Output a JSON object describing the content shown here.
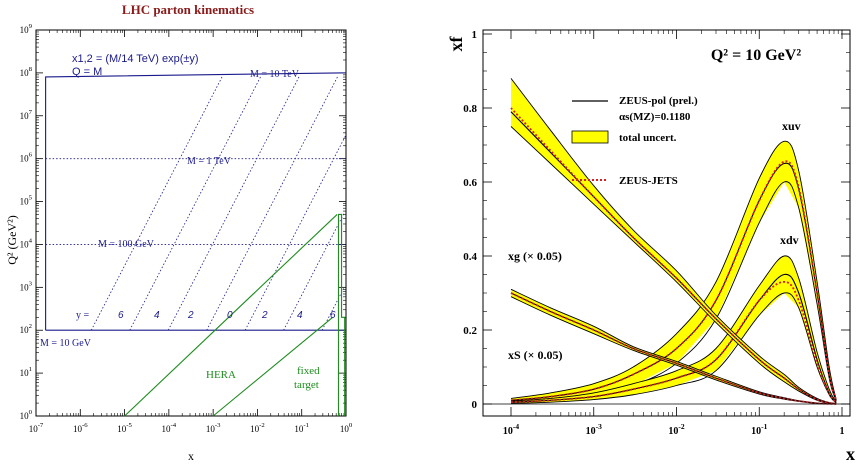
{
  "chart_data": [
    {
      "type": "line",
      "title": "LHC parton kinematics",
      "xlabel": "x",
      "ylabel": "Q² (GeV²)",
      "xscale": "log",
      "yscale": "log",
      "xlim": [
        1e-07,
        1
      ],
      "ylim": [
        1,
        1000000000.0
      ],
      "x_tick_labels": [
        "10-7",
        "10-6",
        "10-5",
        "10-4",
        "10-3",
        "10-2",
        "10-1",
        "100"
      ],
      "y_tick_labels": [
        "100",
        "101",
        "102",
        "103",
        "104",
        "105",
        "106",
        "107",
        "108",
        "109"
      ],
      "formula_lines": [
        "x1,2 = (M/14 TeV) exp(±y)",
        "Q = M"
      ],
      "mass_labels": [
        "M = 10 TeV",
        "M = 1 TeV",
        "M = 100 GeV",
        "M = 10 GeV"
      ],
      "masses_gev": [
        10000,
        1000,
        100,
        10
      ],
      "y_row_label": "y =",
      "y_values_labels": [
        "6",
        "4",
        "2",
        "0",
        "2",
        "4",
        "6"
      ],
      "rapidity_values": [
        -6,
        -4,
        -2,
        0,
        2,
        4,
        6
      ],
      "regions": [
        "HERA",
        "fixed",
        "target"
      ],
      "colors": {
        "lhc": "#1a1a8c",
        "hera": "#1e8c1e",
        "title": "#8b1a1a"
      }
    },
    {
      "type": "line",
      "title": "Q² = 10 GeV²",
      "xlabel": "x",
      "ylabel": "xf",
      "xscale": "log",
      "xlim": [
        0.0001,
        1
      ],
      "ylim": [
        0,
        1
      ],
      "x_tick_labels": [
        "10-4",
        "10-3",
        "10-2",
        "10-1",
        "1"
      ],
      "y_tick_labels": [
        "0",
        "0.2",
        "0.4",
        "0.6",
        "0.8",
        "1"
      ],
      "legend": {
        "placement": "top-right",
        "entries": [
          "ZEUS-pol (prel.)",
          "αs(MZ)=0.1180",
          "total uncert.",
          "ZEUS-JETS"
        ]
      },
      "curve_labels": [
        "xuv",
        "xdv",
        "xg (× 0.05)",
        "xS (× 0.05)"
      ],
      "x": [
        0.0001,
        0.0003,
        0.001,
        0.003,
        0.01,
        0.03,
        0.1,
        0.2,
        0.3,
        0.5,
        0.7,
        0.85
      ],
      "series": [
        {
          "name": "xuv",
          "central": [
            0.01,
            0.02,
            0.04,
            0.08,
            0.15,
            0.28,
            0.55,
            0.65,
            0.58,
            0.3,
            0.08,
            0.01
          ],
          "lower": [
            0.005,
            0.012,
            0.025,
            0.05,
            0.11,
            0.23,
            0.49,
            0.6,
            0.53,
            0.27,
            0.07,
            0.008
          ],
          "upper": [
            0.015,
            0.03,
            0.055,
            0.1,
            0.19,
            0.33,
            0.61,
            0.71,
            0.63,
            0.33,
            0.1,
            0.012
          ],
          "jets": [
            0.01,
            0.02,
            0.04,
            0.08,
            0.15,
            0.28,
            0.55,
            0.655,
            0.585,
            0.3,
            0.08,
            0.01
          ]
        },
        {
          "name": "xdv",
          "central": [
            0.005,
            0.01,
            0.02,
            0.04,
            0.07,
            0.12,
            0.28,
            0.35,
            0.3,
            0.12,
            0.03,
            0.004
          ],
          "lower": [
            0.002,
            0.005,
            0.012,
            0.025,
            0.05,
            0.09,
            0.24,
            0.3,
            0.26,
            0.1,
            0.025,
            0.003
          ],
          "upper": [
            0.008,
            0.015,
            0.03,
            0.055,
            0.09,
            0.15,
            0.32,
            0.4,
            0.34,
            0.14,
            0.04,
            0.005
          ],
          "jets": [
            0.005,
            0.01,
            0.02,
            0.04,
            0.07,
            0.12,
            0.28,
            0.33,
            0.28,
            0.11,
            0.028,
            0.004
          ]
        },
        {
          "name": "xg (× 0.05)",
          "central": [
            0.79,
            0.68,
            0.56,
            0.45,
            0.34,
            0.23,
            0.12,
            0.07,
            0.04,
            0.012,
            0.003,
            0.001
          ],
          "lower": [
            0.75,
            0.65,
            0.54,
            0.44,
            0.33,
            0.22,
            0.11,
            0.06,
            0.035,
            0.01,
            0.002,
            0.0
          ],
          "upper": [
            0.88,
            0.74,
            0.59,
            0.47,
            0.36,
            0.24,
            0.13,
            0.08,
            0.045,
            0.015,
            0.004,
            0.002
          ],
          "jets": [
            0.8,
            0.685,
            0.56,
            0.45,
            0.34,
            0.23,
            0.12,
            0.07,
            0.04,
            0.012,
            0.003,
            0.001
          ]
        },
        {
          "name": "xS (× 0.05)",
          "central": [
            0.3,
            0.25,
            0.2,
            0.15,
            0.11,
            0.07,
            0.03,
            0.015,
            0.008,
            0.002,
            0.0005,
            0.0001
          ],
          "lower": [
            0.29,
            0.24,
            0.19,
            0.145,
            0.105,
            0.065,
            0.027,
            0.013,
            0.007,
            0.0015,
            0.0003,
            0.0
          ],
          "upper": [
            0.31,
            0.26,
            0.21,
            0.155,
            0.115,
            0.075,
            0.033,
            0.017,
            0.009,
            0.0025,
            0.0007,
            0.0002
          ],
          "jets": [
            0.3,
            0.25,
            0.2,
            0.15,
            0.11,
            0.07,
            0.03,
            0.015,
            0.008,
            0.002,
            0.0005,
            0.0001
          ]
        }
      ],
      "colors": {
        "band": "#ffff00",
        "central": "#000000",
        "jets": "#d81e1e"
      }
    }
  ]
}
